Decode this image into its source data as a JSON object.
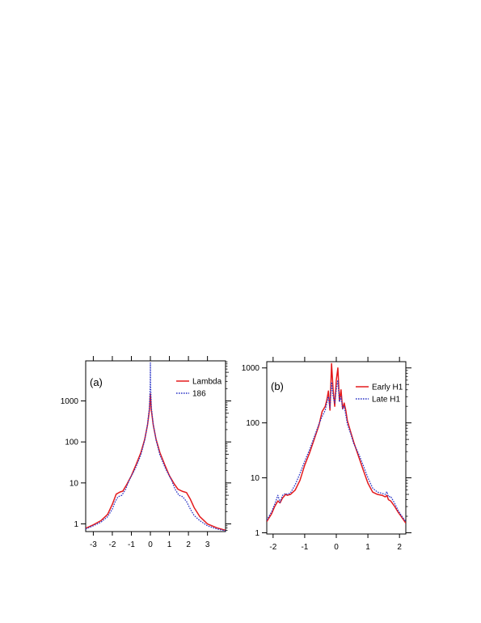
{
  "chart_data": [
    {
      "type": "line",
      "panel_label": "(a)",
      "xlim": [
        -3.4,
        3.95
      ],
      "ylim": [
        0.65,
        9500
      ],
      "y_scale": "log",
      "x_ticks": [
        -3,
        -2,
        -1,
        0,
        1,
        2,
        3
      ],
      "x_tick_labels": [
        "-3",
        "-2",
        "-1",
        "0",
        "1",
        "2",
        "3"
      ],
      "y_ticks": [
        1,
        10,
        100,
        1000
      ],
      "y_tick_labels": [
        "1",
        "10",
        "100",
        "1000"
      ],
      "legend_position": "top-right",
      "series": [
        {
          "name": "Lambda",
          "color": "#e41a1c",
          "dash": "solid",
          "x": [
            -3.4,
            -3.0,
            -2.6,
            -2.25,
            -2.0,
            -1.8,
            -1.6,
            -1.45,
            -1.25,
            -1.0,
            -0.75,
            -0.5,
            -0.3,
            -0.15,
            -0.05,
            0,
            0.05,
            0.15,
            0.3,
            0.5,
            0.75,
            1.0,
            1.25,
            1.45,
            1.7,
            1.9,
            2.1,
            2.3,
            2.6,
            3.0,
            3.5,
            3.95
          ],
          "values": [
            0.78,
            0.95,
            1.2,
            1.7,
            3.0,
            5.3,
            6.0,
            6.3,
            9.0,
            15,
            28,
            55,
            115,
            260,
            600,
            1500,
            600,
            260,
            115,
            55,
            28,
            15,
            9.5,
            7.0,
            6.2,
            5.8,
            4.0,
            2.5,
            1.5,
            1.0,
            0.8,
            0.7
          ]
        },
        {
          "name": "186",
          "color": "#2b35c6",
          "dash": "dotted",
          "x": [
            -3.4,
            -3.0,
            -2.6,
            -2.25,
            -2.0,
            -1.85,
            -1.7,
            -1.5,
            -1.3,
            -1.1,
            -0.8,
            -0.5,
            -0.3,
            -0.15,
            -0.05,
            -0.01,
            0,
            0.01,
            0.05,
            0.15,
            0.3,
            0.5,
            0.8,
            1.1,
            1.3,
            1.5,
            1.7,
            1.9,
            2.1,
            2.3,
            2.6,
            3.0,
            3.5,
            3.95
          ],
          "values": [
            0.75,
            0.9,
            1.1,
            1.5,
            2.3,
            3.5,
            4.6,
            5.0,
            7.0,
            12,
            22,
            48,
            110,
            270,
            700,
            2500,
            8500,
            2500,
            700,
            270,
            110,
            48,
            22,
            12,
            7.0,
            5.0,
            4.6,
            3.5,
            2.3,
            1.6,
            1.2,
            0.9,
            0.75,
            0.68
          ]
        }
      ]
    },
    {
      "type": "line",
      "panel_label": "(b)",
      "xlim": [
        -2.2,
        2.2
      ],
      "ylim": [
        0.95,
        1300
      ],
      "y_scale": "log",
      "x_ticks": [
        -2,
        -1,
        0,
        1,
        2
      ],
      "x_tick_labels": [
        "-2",
        "-1",
        "0",
        "1",
        "2"
      ],
      "y_ticks": [
        1,
        10,
        100,
        1000
      ],
      "y_tick_labels": [
        "1",
        "10",
        "100",
        "1000"
      ],
      "legend_position": "top-right",
      "series": [
        {
          "name": "Early H1",
          "color": "#e41a1c",
          "dash": "solid",
          "x": [
            -2.2,
            -2.05,
            -1.95,
            -1.85,
            -1.78,
            -1.7,
            -1.6,
            -1.55,
            -1.45,
            -1.3,
            -1.15,
            -1.0,
            -0.85,
            -0.7,
            -0.55,
            -0.45,
            -0.35,
            -0.3,
            -0.25,
            -0.2,
            -0.15,
            -0.1,
            -0.05,
            0,
            0.05,
            0.1,
            0.15,
            0.2,
            0.25,
            0.3,
            0.35,
            0.45,
            0.55,
            0.7,
            0.85,
            1.0,
            1.15,
            1.3,
            1.45,
            1.55,
            1.6,
            1.65,
            1.72,
            1.85,
            1.95,
            2.05,
            2.2
          ],
          "values": [
            1.6,
            2.2,
            3.0,
            3.8,
            3.5,
            4.3,
            5.0,
            4.8,
            5.0,
            6.0,
            9,
            17,
            28,
            50,
            90,
            160,
            200,
            260,
            380,
            170,
            1200,
            400,
            200,
            600,
            1000,
            250,
            400,
            180,
            230,
            170,
            110,
            70,
            45,
            25,
            14,
            8,
            5.5,
            5.0,
            4.8,
            4.5,
            4.8,
            4.0,
            3.8,
            3.0,
            2.4,
            2.0,
            1.5
          ]
        },
        {
          "name": "Late H1",
          "color": "#2b35c6",
          "dash": "dotted",
          "x": [
            -2.2,
            -2.05,
            -1.95,
            -1.85,
            -1.78,
            -1.7,
            -1.6,
            -1.55,
            -1.45,
            -1.3,
            -1.15,
            -1.0,
            -0.85,
            -0.7,
            -0.55,
            -0.45,
            -0.35,
            -0.3,
            -0.25,
            -0.2,
            -0.15,
            -0.1,
            -0.05,
            0,
            0.05,
            0.1,
            0.15,
            0.2,
            0.25,
            0.3,
            0.35,
            0.45,
            0.55,
            0.7,
            0.85,
            1.0,
            1.15,
            1.3,
            1.45,
            1.55,
            1.6,
            1.65,
            1.72,
            1.85,
            1.95,
            2.05,
            2.2
          ],
          "values": [
            1.7,
            2.4,
            3.3,
            4.8,
            3.6,
            4.8,
            5.2,
            5.0,
            5.3,
            7.5,
            12,
            20,
            32,
            55,
            95,
            130,
            170,
            230,
            300,
            190,
            550,
            300,
            230,
            400,
            600,
            240,
            300,
            180,
            200,
            140,
            95,
            65,
            42,
            28,
            17,
            10,
            6.5,
            5.5,
            5.2,
            5.0,
            5.6,
            4.5,
            4.6,
            3.4,
            2.6,
            2.1,
            1.6
          ]
        }
      ]
    }
  ]
}
